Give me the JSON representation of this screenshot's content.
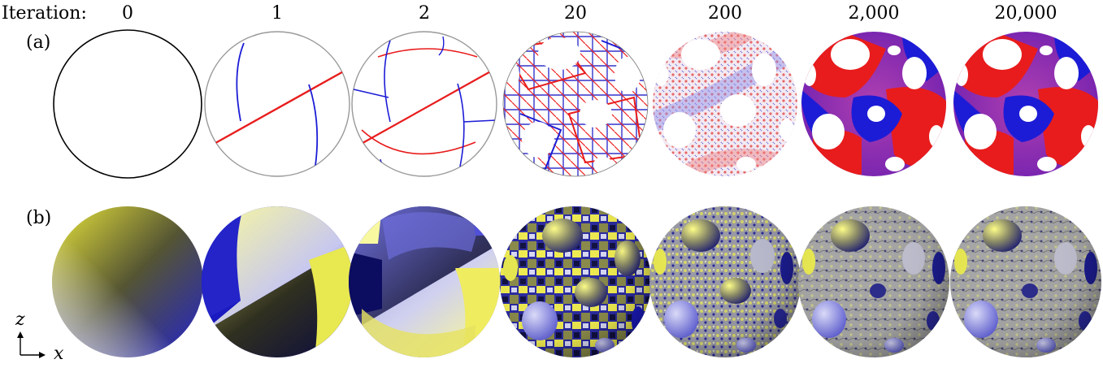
{
  "header": {
    "iteration_label": "Iteration:"
  },
  "iterations": [
    "0",
    "1",
    "2",
    "20",
    "200",
    "2,000",
    "20,000"
  ],
  "rows": {
    "a": "(a)",
    "b": "(b)"
  },
  "axes": {
    "vertical": "z",
    "horizontal": "x"
  },
  "colors": {
    "red": "#e81c1c",
    "blue": "#1c1cd6",
    "gray": "#999999",
    "yellow": "#f2ee5a",
    "navy": "#101050",
    "light_blue": "#b8b8f4",
    "stone": "#a9a9a9"
  }
}
